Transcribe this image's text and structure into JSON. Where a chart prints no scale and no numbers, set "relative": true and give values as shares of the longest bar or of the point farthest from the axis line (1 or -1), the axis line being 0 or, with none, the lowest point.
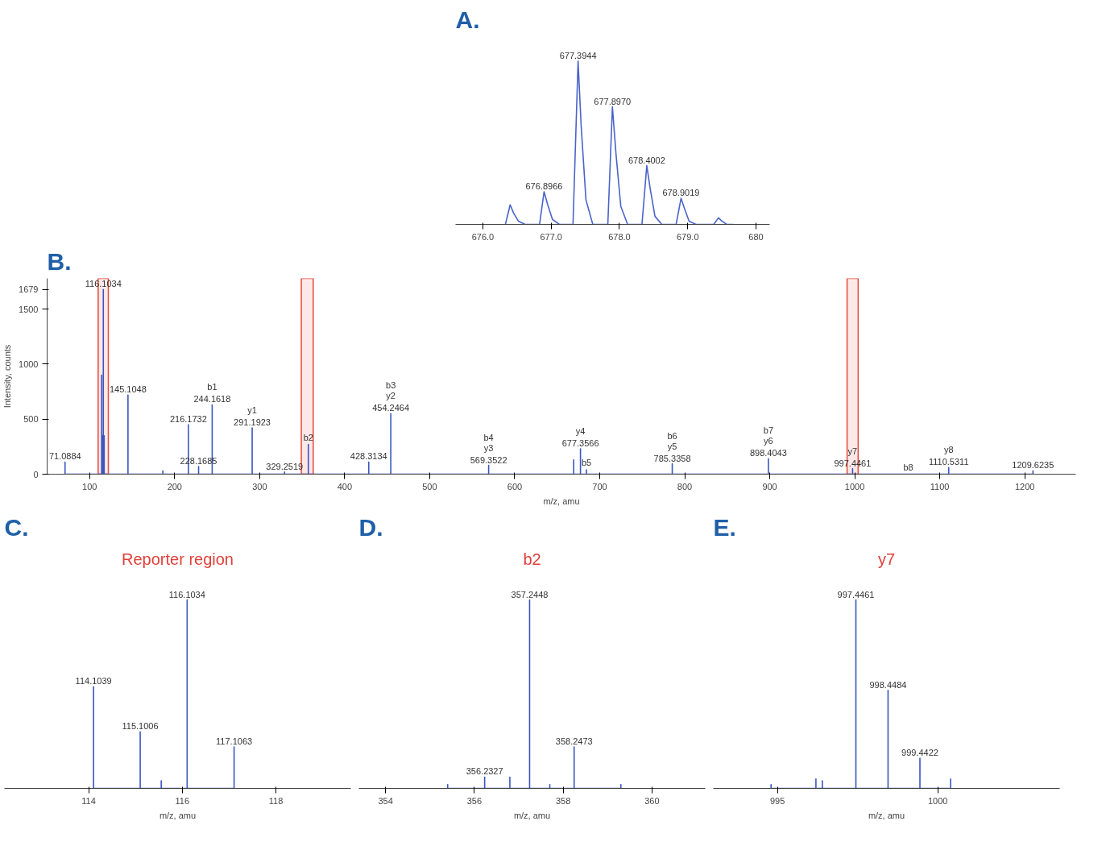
{
  "chart_data": [
    {
      "type": "line",
      "title": "A.",
      "xlim": [
        675.6,
        680.2
      ],
      "xticks": [
        {
          "value": 676,
          "label": "676.0"
        },
        {
          "value": 677,
          "label": "677.0"
        },
        {
          "value": 678,
          "label": "678.0"
        },
        {
          "value": 679,
          "label": "679.0"
        },
        680
      ],
      "relative": true,
      "series": [
        {
          "color": "#4a63c8",
          "x": [
            676.33,
            676.4,
            676.45,
            676.52,
            676.62,
            676.83,
            676.8966,
            676.95,
            677.02,
            677.12,
            677.32,
            677.3944,
            677.44,
            677.51,
            677.61,
            677.83,
            677.897,
            677.95,
            678.02,
            678.12,
            678.33,
            678.4002,
            678.45,
            678.52,
            678.62,
            678.83,
            678.9019,
            678.95,
            679.02,
            679.12,
            679.38,
            679.45,
            679.5,
            679.57,
            679.67
          ],
          "values": [
            0,
            0.12,
            0.07,
            0.02,
            0,
            0,
            0.2,
            0.12,
            0.03,
            0,
            0,
            1,
            0.6,
            0.15,
            0,
            0,
            0.72,
            0.43,
            0.11,
            0,
            0,
            0.36,
            0.22,
            0.05,
            0,
            0,
            0.16,
            0.1,
            0.02,
            0,
            0,
            0.04,
            0.02,
            0,
            0
          ]
        }
      ],
      "annotations": [
        {
          "text": "676.8966",
          "x": 676.8966,
          "y": 0.2
        },
        {
          "text": "677.3944",
          "x": 677.3944,
          "y": 1
        },
        {
          "text": "677.8970",
          "x": 677.897,
          "y": 0.72
        },
        {
          "text": "678.4002",
          "x": 678.4002,
          "y": 0.36
        },
        {
          "text": "678.9019",
          "x": 678.9019,
          "y": 0.16
        }
      ]
    },
    {
      "type": "line",
      "title": "B.",
      "xlabel": "m/z, amu",
      "ylabel": "Intensity, counts",
      "xlim": [
        50,
        1260
      ],
      "xticks": [
        100,
        200,
        300,
        400,
        500,
        600,
        700,
        800,
        900,
        1000,
        1100,
        1200
      ],
      "ylim": [
        0,
        1780
      ],
      "yticks": [
        0,
        500,
        1000,
        1500,
        1679
      ],
      "series": [
        {
          "color": "#3a56c0",
          "x": [
            71.0884,
            71.0884,
            71.0884,
            114.1,
            114.1,
            114.1,
            115.1,
            115.1,
            115.1,
            116.1034,
            116.1034,
            116.1034,
            117.1,
            117.1,
            117.1,
            145.1048,
            145.1048,
            145.1048,
            186.1,
            186.1,
            186.1,
            216.1732,
            216.1732,
            216.1732,
            228.1685,
            228.1685,
            228.1685,
            244.1618,
            244.1618,
            244.1618,
            291.1923,
            291.1923,
            291.1923,
            329.2519,
            329.2519,
            329.2519,
            357.2448,
            357.2448,
            357.2448,
            428.3134,
            428.3134,
            428.3134,
            454.2464,
            454.2464,
            454.2464,
            569.3522,
            569.3522,
            569.3522,
            669.4,
            669.4,
            669.4,
            677.3566,
            677.3566,
            677.3566,
            684.4,
            684.4,
            684.4,
            785.3358,
            785.3358,
            785.3358,
            898.4043,
            898.4043,
            898.4043,
            997.4461,
            997.4461,
            997.4461,
            1110.5311,
            1110.5311,
            1110.5311,
            1209.6235,
            1209.6235,
            1209.6235
          ],
          "values": [
            0,
            110,
            0,
            0,
            900,
            0,
            0,
            350,
            0,
            0,
            1679,
            0,
            0,
            350,
            0,
            0,
            720,
            0,
            0,
            30,
            0,
            0,
            450,
            0,
            0,
            70,
            0,
            0,
            630,
            0,
            0,
            420,
            0,
            0,
            20,
            0,
            0,
            270,
            0,
            0,
            110,
            0,
            0,
            550,
            0,
            0,
            80,
            0,
            0,
            130,
            0,
            0,
            230,
            0,
            0,
            40,
            0,
            0,
            95,
            0,
            0,
            140,
            0,
            0,
            50,
            0,
            0,
            60,
            0,
            0,
            30,
            0
          ]
        }
      ],
      "bands": [
        {
          "axis": "x",
          "from": 110,
          "to": 122,
          "color": "#e8483c"
        },
        {
          "axis": "x",
          "from": 349,
          "to": 363,
          "color": "#e8483c"
        },
        {
          "axis": "x",
          "from": 991,
          "to": 1004,
          "color": "#e8483c"
        }
      ],
      "annotations": [
        {
          "text": "71.0884",
          "x": 71.0884,
          "y": 110
        },
        {
          "text": "116.1034",
          "x": 116.1034,
          "y": 1679
        },
        {
          "text": "145.1048",
          "x": 145.1048,
          "y": 720
        },
        {
          "text": "216.1732",
          "x": 216.1732,
          "y": 450
        },
        {
          "text": "228.1685",
          "x": 228.1685,
          "y": 70
        },
        {
          "text": "244.1618",
          "x": 244.1618,
          "y": 630
        },
        {
          "text": "b1",
          "x": 244.1618,
          "y": 630
        },
        {
          "text": "291.1923",
          "x": 291.1923,
          "y": 420
        },
        {
          "text": "y1",
          "x": 291.1923,
          "y": 420
        },
        {
          "text": "329.2519",
          "x": 329.2519,
          "y": 20
        },
        {
          "text": "b2",
          "x": 357.2448,
          "y": 270
        },
        {
          "text": "428.3134",
          "x": 428.3134,
          "y": 110
        },
        {
          "text": "454.2464",
          "x": 454.2464,
          "y": 550
        },
        {
          "text": "y2",
          "x": 454.2464,
          "y": 550
        },
        {
          "text": "b3",
          "x": 454.2464,
          "y": 550
        },
        {
          "text": "569.3522",
          "x": 569.3522,
          "y": 80
        },
        {
          "text": "y3",
          "x": 569.3522,
          "y": 80
        },
        {
          "text": "b4",
          "x": 569.3522,
          "y": 80
        },
        {
          "text": "677.3566",
          "x": 677.3566,
          "y": 230
        },
        {
          "text": "y4",
          "x": 677.3566,
          "y": 230
        },
        {
          "text": "b5",
          "x": 684.4,
          "y": 40
        },
        {
          "text": "785.3358",
          "x": 785.3358,
          "y": 95
        },
        {
          "text": "y5",
          "x": 785.3358,
          "y": 95
        },
        {
          "text": "b6",
          "x": 785.3358,
          "y": 95
        },
        {
          "text": "898.4043",
          "x": 898.4043,
          "y": 140
        },
        {
          "text": "y6",
          "x": 898.4043,
          "y": 140
        },
        {
          "text": "b7",
          "x": 898.4043,
          "y": 140
        },
        {
          "text": "997.4461",
          "x": 997.4461,
          "y": 50
        },
        {
          "text": "y7",
          "x": 997.4461,
          "y": 50
        },
        {
          "text": "b8",
          "x": 1063,
          "y": 0
        },
        {
          "text": "1110.5311",
          "x": 1110.5311,
          "y": 60
        },
        {
          "text": "y8",
          "x": 1110.5311,
          "y": 60
        },
        {
          "text": "1209.6235",
          "x": 1209.6235,
          "y": 30
        }
      ]
    },
    {
      "type": "line",
      "title": "C.",
      "subtitle": "Reporter region",
      "xlabel": "m/z, amu",
      "xlim": [
        112.2,
        119.6
      ],
      "xticks": [
        114,
        116,
        118
      ],
      "relative": true,
      "series": [
        {
          "color": "#3a56c0",
          "x": [
            114.1039,
            114.1039,
            114.1039,
            115.1006,
            115.1006,
            115.1006,
            115.55,
            115.55,
            115.55,
            116.1034,
            116.1034,
            116.1034,
            117.1063,
            117.1063,
            117.1063
          ],
          "values": [
            0,
            0.54,
            0,
            0,
            0.3,
            0,
            0,
            0.04,
            0,
            0,
            1,
            0,
            0,
            0.22,
            0
          ]
        }
      ],
      "annotations": [
        {
          "text": "114.1039",
          "x": 114.1039,
          "y": 0.54
        },
        {
          "text": "115.1006",
          "x": 115.1006,
          "y": 0.3
        },
        {
          "text": "116.1034",
          "x": 116.1034,
          "y": 1
        },
        {
          "text": "117.1063",
          "x": 117.1063,
          "y": 0.22
        }
      ]
    },
    {
      "type": "line",
      "title": "D.",
      "subtitle": "b2",
      "xlabel": "m/z, amu",
      "xlim": [
        353.4,
        361.2
      ],
      "xticks": [
        354,
        356,
        358,
        360
      ],
      "relative": true,
      "series": [
        {
          "color": "#3a56c0",
          "x": [
            355.4,
            355.4,
            355.4,
            356.2327,
            356.2327,
            356.2327,
            356.8,
            356.8,
            356.8,
            357.2448,
            357.2448,
            357.2448,
            357.7,
            357.7,
            357.7,
            358.2473,
            358.2473,
            358.2473,
            359.3,
            359.3,
            359.3
          ],
          "values": [
            0,
            0.02,
            0,
            0,
            0.06,
            0,
            0,
            0.06,
            0,
            0,
            1,
            0,
            0,
            0.02,
            0,
            0,
            0.22,
            0,
            0,
            0.02,
            0
          ]
        }
      ],
      "annotations": [
        {
          "text": "356.2327",
          "x": 356.2327,
          "y": 0.06
        },
        {
          "text": "357.2448",
          "x": 357.2448,
          "y": 1
        },
        {
          "text": "358.2473",
          "x": 358.2473,
          "y": 0.22
        }
      ]
    },
    {
      "type": "line",
      "title": "E.",
      "subtitle": "y7",
      "xlabel": "m/z, amu",
      "xlim": [
        993,
        1003.8
      ],
      "xticks": [
        995,
        1000
      ],
      "relative": true,
      "series": [
        {
          "color": "#3a56c0",
          "x": [
            994.8,
            994.8,
            994.8,
            996.2,
            996.2,
            996.2,
            996.4,
            996.4,
            996.4,
            997.4461,
            997.4461,
            997.4461,
            998.4484,
            998.4484,
            998.4484,
            999.4422,
            999.4422,
            999.4422,
            1000.4,
            1000.4,
            1000.4
          ],
          "values": [
            0,
            0.02,
            0,
            0,
            0.05,
            0,
            0,
            0.04,
            0,
            0,
            1,
            0,
            0,
            0.52,
            0,
            0,
            0.16,
            0,
            0,
            0.05,
            0
          ]
        }
      ],
      "annotations": [
        {
          "text": "997.4461",
          "x": 997.4461,
          "y": 1
        },
        {
          "text": "998.4484",
          "x": 998.4484,
          "y": 0.52
        },
        {
          "text": "999.4422",
          "x": 999.4422,
          "y": 0.16
        }
      ]
    }
  ]
}
